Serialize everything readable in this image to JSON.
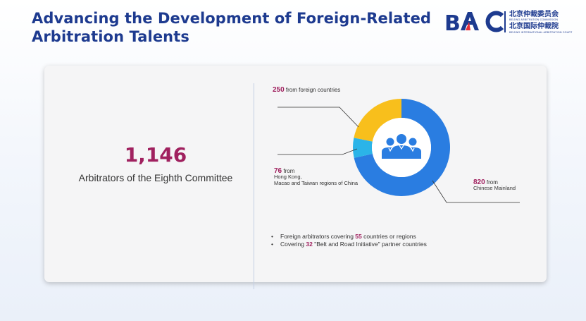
{
  "header": {
    "title": "Advancing the Development of Foreign-Related Arbitration Talents",
    "logo": {
      "mark": "BAC",
      "cn_line1": "北京仲裁委员会",
      "en_line1": "BEIJING ARBITRATION COMMISSION",
      "cn_line2": "北京国际仲裁院",
      "en_line2": "BEIJING INTERNATIONAL ARBITRATION COURT",
      "colors": {
        "navy": "#1d3a8f",
        "red": "#e8303a"
      }
    }
  },
  "summary": {
    "total": "1,146",
    "label": "Arbitrators of the Eighth Committee"
  },
  "chart_data": {
    "type": "pie",
    "donut": true,
    "center_icon": "people-group-icon",
    "slices": [
      {
        "value": 820,
        "label": "from",
        "sublabel": "Chinese Mainland",
        "color": "#2a7de1"
      },
      {
        "value": 76,
        "label": "from",
        "sublabel": "Hong Kong,\nMacao and Taiwan regions of China",
        "color": "#2bb4e8"
      },
      {
        "value": 250,
        "label": "from foreign countries",
        "sublabel": "",
        "color": "#f8bf1c"
      }
    ]
  },
  "notes": [
    {
      "pre": "Foreign arbitrators covering ",
      "num": "55",
      "post": " countries or regions"
    },
    {
      "pre": "Covering ",
      "num": "32",
      "post": " \"Belt and Road Initiative\" partner countries"
    }
  ]
}
